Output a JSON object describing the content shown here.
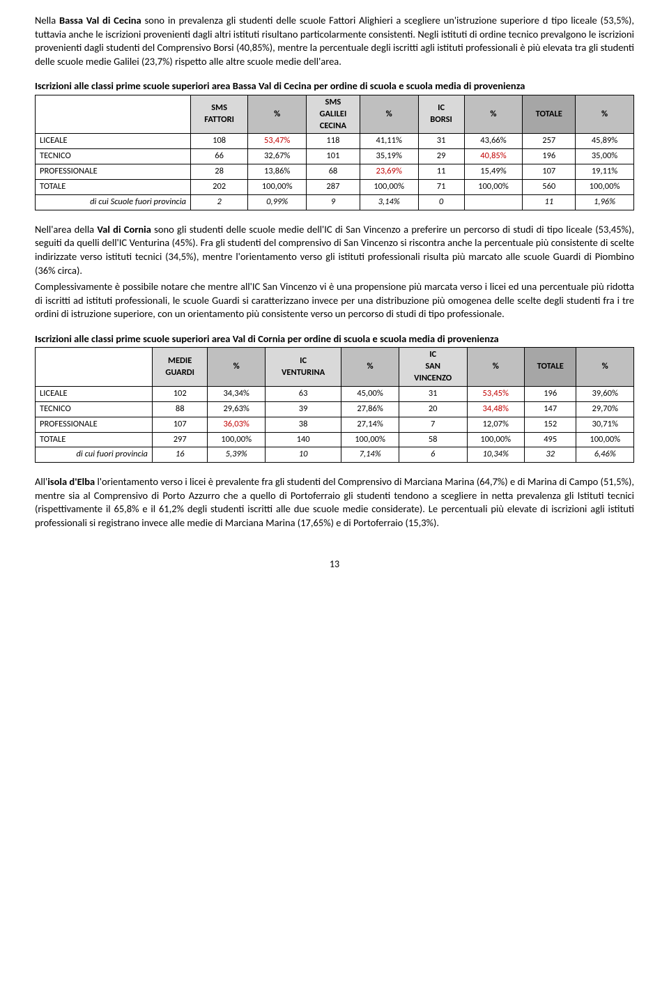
{
  "para1": "Nella Bassa Val di Cecina sono in prevalenza gli studenti delle scuole Fattori Alighieri a scegliere un'istruzione superiore d tipo liceale (53,5%), tuttavia anche le iscrizioni provenienti dagli altri istituti risultano particolarmente consistenti. Negli istituti di ordine tecnico prevalgono le iscrizioni provenienti dagli studenti del Comprensivo Borsi (40,85%), mentre la percentuale degli iscritti agli istituti professionali è più elevata tra gli studenti delle scuole medie Galilei (23,7%) rispetto alle altre scuole medie dell'area.",
  "table1": {
    "title": "Iscrizioni alle classi prime scuole superiori area Bassa Val di Cecina per ordine di scuola e scuola media di provenienza",
    "headers": [
      "",
      "SMS FATTORI",
      "%",
      "SMS GALILEI CECINA",
      "%",
      "IC BORSI",
      "%",
      "TOTALE",
      "%"
    ],
    "rows": [
      {
        "label": "LICEALE",
        "cells": [
          "108",
          "53,47%",
          "118",
          "41,11%",
          "31",
          "43,66%",
          "257",
          "45,89%"
        ],
        "red": [
          1
        ]
      },
      {
        "label": "TECNICO",
        "cells": [
          "66",
          "32,67%",
          "101",
          "35,19%",
          "29",
          "40,85%",
          "196",
          "35,00%"
        ],
        "red": [
          5
        ]
      },
      {
        "label": "PROFESSIONALE",
        "cells": [
          "28",
          "13,86%",
          "68",
          "23,69%",
          "11",
          "15,49%",
          "107",
          "19,11%"
        ],
        "red": [
          3
        ]
      },
      {
        "label": "TOTALE",
        "cells": [
          "202",
          "100,00%",
          "287",
          "100,00%",
          "71",
          "100,00%",
          "560",
          "100,00%"
        ],
        "red": []
      }
    ],
    "footer": {
      "label": "di cui Scuole fuori provincia",
      "cells": [
        "2",
        "0,99%",
        "9",
        "3,14%",
        "0",
        "",
        "11",
        "1,96%"
      ]
    }
  },
  "para2a": "Nell'area della Val di Cornia sono gli studenti delle scuole medie dell'IC di San Vincenzo a preferire un percorso di studi di tipo liceale (53,45%), seguiti da quelli dell'IC Venturina (45%). Fra gli studenti del comprensivo di San Vincenzo si riscontra anche la percentuale più consistente di scelte indirizzate verso istituti tecnici (34,5%), mentre l'orientamento verso gli istituti professionali risulta più marcato alle scuole Guardi di Piombino (36% circa).",
  "para2b": "Complessivamente è possibile notare che mentre all'IC San Vincenzo  vi è una propensione più marcata verso i licei ed una percentuale più ridotta di iscritti ad istituti professionali, le scuole Guardi si caratterizzano invece per una  distribuzione più omogenea delle scelte degli studenti fra i tre ordini di istruzione superiore, con un orientamento più consistente verso un percorso di studi di tipo professionale.",
  "table2": {
    "title": "Iscrizioni alle classi prime scuole superiori area Val di Cornia per ordine di scuola e scuola media di provenienza",
    "headers": [
      "",
      "MEDIE GUARDI",
      "%",
      "IC VENTURINA",
      "%",
      "IC SAN VINCENZO",
      "%",
      "TOTALE",
      "%"
    ],
    "rows": [
      {
        "label": "LICEALE",
        "cells": [
          "102",
          "34,34%",
          "63",
          "45,00%",
          "31",
          "53,45%",
          "196",
          "39,60%"
        ],
        "red": [
          5
        ]
      },
      {
        "label": "TECNICO",
        "cells": [
          "88",
          "29,63%",
          "39",
          "27,86%",
          "20",
          "34,48%",
          "147",
          "29,70%"
        ],
        "red": [
          5
        ]
      },
      {
        "label": "PROFESSIONALE",
        "cells": [
          "107",
          "36,03%",
          "38",
          "27,14%",
          "7",
          "12,07%",
          "152",
          "30,71%"
        ],
        "red": [
          1
        ]
      },
      {
        "label": "TOTALE",
        "cells": [
          "297",
          "100,00%",
          "140",
          "100,00%",
          "58",
          "100,00%",
          "495",
          "100,00%"
        ],
        "red": []
      }
    ],
    "footer": {
      "label": "di cui fuori provincia",
      "cells": [
        "16",
        "5,39%",
        "10",
        "7,14%",
        "6",
        "10,34%",
        "32",
        "6,46%"
      ]
    }
  },
  "para3": "All'isola d'Elba l'orientamento verso i licei è prevalente fra gli studenti del Comprensivo di Marciana Marina (64,7%) e di Marina di Campo (51,5%), mentre sia al Comprensivo di Porto Azzurro che a quello di Portoferraio gli studenti tendono a scegliere in netta prevalenza gli Istituti tecnici (rispettivamente il 65,8% e il 61,2% degli studenti iscritti alle due scuole medie considerate). Le percentuali più elevate di iscrizioni agli istituti professionali si registrano invece alle medie di Marciana Marina (17,65%) e di Portoferraio (15,3%).",
  "pageNum": "13",
  "boldTerms": [
    "Bassa Val di Cecina",
    "Val di Cornia",
    "isola d'Elba"
  ]
}
